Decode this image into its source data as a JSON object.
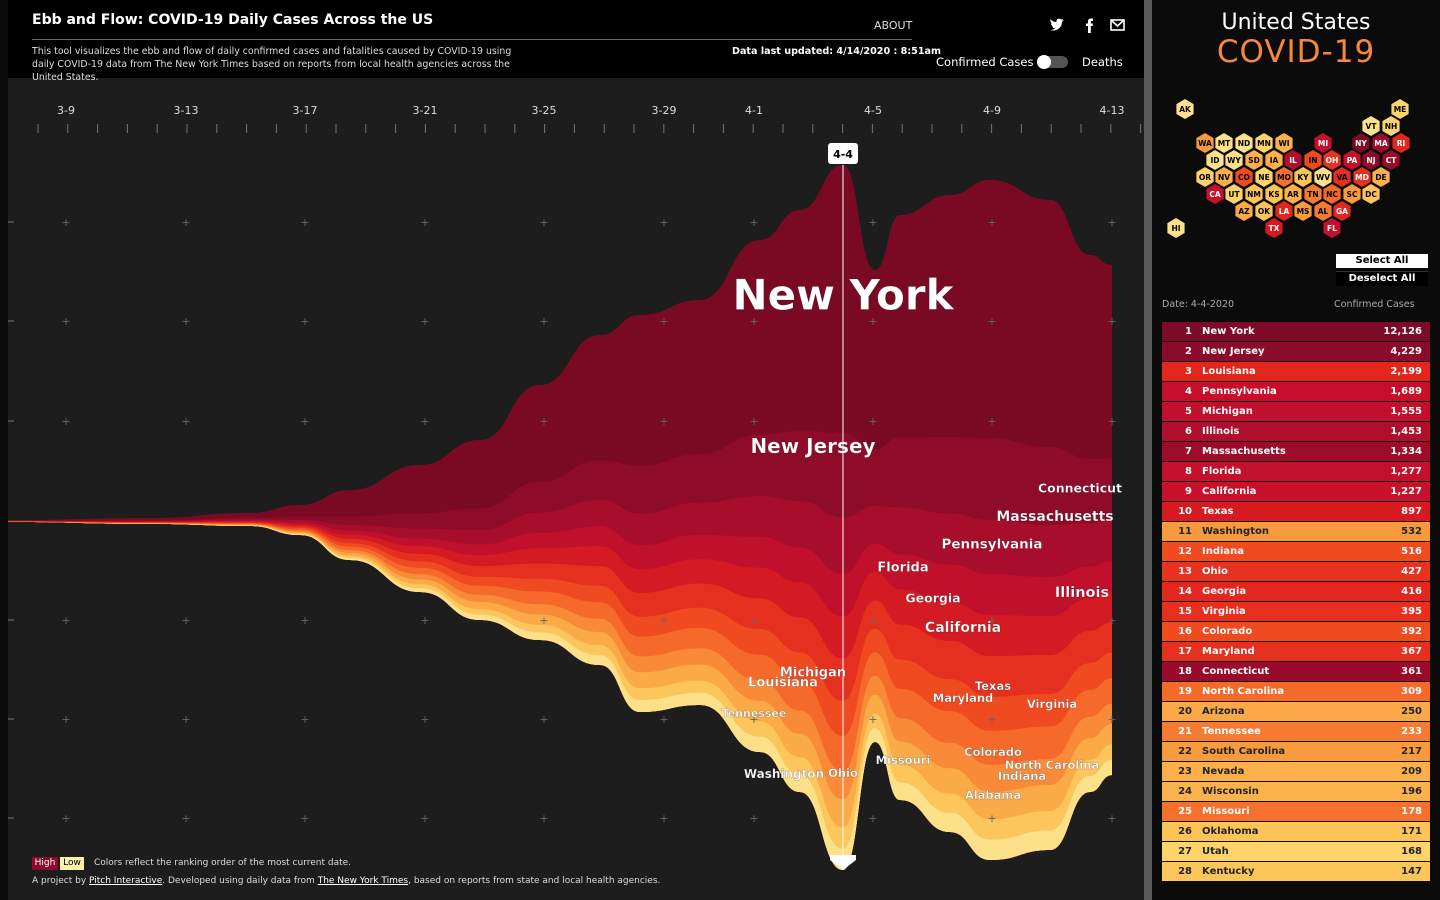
{
  "header": {
    "title": "Ebb and Flow: COVID-19 Daily Cases Across the US",
    "about": "ABOUT",
    "description": "This tool visualizes the ebb and flow of daily confirmed cases and fatalities caused by COVID-19 using daily COVID-19 data from The New York Times based on reports from local health agencies across the United States.",
    "updated": "Data last updated: 4/14/2020 : 8:51am",
    "toggle": {
      "left": "Confirmed Cases",
      "right": "Deaths"
    }
  },
  "chart": {
    "dates": [
      "3-9",
      "3-13",
      "3-17",
      "3-21",
      "3-25",
      "3-29",
      "4-1",
      "4-5",
      "4-9",
      "4-13"
    ],
    "marker": "4-4",
    "labels": [
      "New York",
      "New Jersey",
      "Connecticut",
      "Massachusetts",
      "Pennsylvania",
      "Florida",
      "Illinois",
      "Georgia",
      "California",
      "Michigan",
      "Louisiana",
      "Tennessee",
      "Texas",
      "Maryland",
      "Virginia",
      "Colorado",
      "North Carolina",
      "Indiana",
      "Missouri",
      "Washington",
      "Ohio",
      "Alabama"
    ]
  },
  "legend": {
    "high": "High",
    "low": "Low",
    "note": "Colors reflect the ranking order of the most current date."
  },
  "footer": {
    "parts": [
      "A project by ",
      "Pitch Interactive",
      ". Developed using daily data from ",
      "The New York Times",
      ", based on reports from state and local health agencies."
    ]
  },
  "sidebar": {
    "title": "United States",
    "subtitle": "COVID-19",
    "hexes": [
      {
        "label": "AK",
        "color": "#ffe08a"
      },
      {
        "label": "ME",
        "color": "#fdd36a"
      },
      {
        "label": "VT",
        "color": "#fde08a"
      },
      {
        "label": "NH",
        "color": "#fdd36a"
      },
      {
        "label": "WA",
        "color": "#f79a3e"
      },
      {
        "label": "MT",
        "color": "#fde08a"
      },
      {
        "label": "ND",
        "color": "#fde08a"
      },
      {
        "label": "MN",
        "color": "#fdd36a"
      },
      {
        "label": "WI",
        "color": "#fbb24c"
      },
      {
        "label": "MI",
        "color": "#c1102d"
      },
      {
        "label": "NY",
        "color": "#7d0a27"
      },
      {
        "label": "MA",
        "color": "#9e0c2c"
      },
      {
        "label": "RI",
        "color": "#e3271f"
      },
      {
        "label": "ID",
        "color": "#fde08a"
      },
      {
        "label": "WY",
        "color": "#fde08a"
      },
      {
        "label": "SD",
        "color": "#fbb04b"
      },
      {
        "label": "IA",
        "color": "#fbb04b"
      },
      {
        "label": "IL",
        "color": "#b00e2d"
      },
      {
        "label": "IN",
        "color": "#f04a1f"
      },
      {
        "label": "OH",
        "color": "#e73220"
      },
      {
        "label": "PA",
        "color": "#c70f2c"
      },
      {
        "label": "NJ",
        "color": "#8c0b2a"
      },
      {
        "label": "CT",
        "color": "#9a0b2b"
      },
      {
        "label": "OR",
        "color": "#fdd36a"
      },
      {
        "label": "NV",
        "color": "#fbb04b"
      },
      {
        "label": "CO",
        "color": "#ef4a20"
      },
      {
        "label": "NE",
        "color": "#fdd36a"
      },
      {
        "label": "MO",
        "color": "#f56f2d"
      },
      {
        "label": "KY",
        "color": "#fcc55a"
      },
      {
        "label": "WV",
        "color": "#fde08a"
      },
      {
        "label": "VA",
        "color": "#e82f1f"
      },
      {
        "label": "MD",
        "color": "#e5301f"
      },
      {
        "label": "DE",
        "color": "#fbb04b"
      },
      {
        "label": "CA",
        "color": "#c8102d"
      },
      {
        "label": "UT",
        "color": "#fdd36a"
      },
      {
        "label": "NM",
        "color": "#fcc457"
      },
      {
        "label": "KS",
        "color": "#fcc457"
      },
      {
        "label": "AR",
        "color": "#fbb04b"
      },
      {
        "label": "TN",
        "color": "#f57a32"
      },
      {
        "label": "NC",
        "color": "#f46a2b"
      },
      {
        "label": "SC",
        "color": "#f89a3e"
      },
      {
        "label": "DC",
        "color": "#fcc457"
      },
      {
        "label": "AZ",
        "color": "#fba948"
      },
      {
        "label": "OK",
        "color": "#fcc457"
      },
      {
        "label": "LA",
        "color": "#e2261c"
      },
      {
        "label": "MS",
        "color": "#f89a3e"
      },
      {
        "label": "AL",
        "color": "#f57a32"
      },
      {
        "label": "GA",
        "color": "#e3271f"
      },
      {
        "label": "HI",
        "color": "#ffe08a"
      },
      {
        "label": "TX",
        "color": "#d71920"
      },
      {
        "label": "FL",
        "color": "#c3102c"
      }
    ],
    "select_all": "Select All",
    "deselect_all": "Deselect All",
    "date": "Date: 4-4-2020",
    "metric": "Confirmed Cases",
    "rows": [
      {
        "rank": 1,
        "name": "New York",
        "cases": "12,126",
        "color": "#7d0a27"
      },
      {
        "rank": 2,
        "name": "New Jersey",
        "cases": "4,229",
        "color": "#8c0b2a"
      },
      {
        "rank": 3,
        "name": "Louisiana",
        "cases": "2,199",
        "color": "#e2261c"
      },
      {
        "rank": 4,
        "name": "Pennsylvania",
        "cases": "1,689",
        "color": "#c70f2c"
      },
      {
        "rank": 5,
        "name": "Michigan",
        "cases": "1,555",
        "color": "#c1102d"
      },
      {
        "rank": 6,
        "name": "Illinois",
        "cases": "1,453",
        "color": "#b00e2d"
      },
      {
        "rank": 7,
        "name": "Massachusetts",
        "cases": "1,334",
        "color": "#9e0c2c"
      },
      {
        "rank": 8,
        "name": "Florida",
        "cases": "1,277",
        "color": "#c3102c"
      },
      {
        "rank": 9,
        "name": "California",
        "cases": "1,227",
        "color": "#c8102d"
      },
      {
        "rank": 10,
        "name": "Texas",
        "cases": "897",
        "color": "#d71920"
      },
      {
        "rank": 11,
        "name": "Washington",
        "cases": "532",
        "color": "#f79a3e"
      },
      {
        "rank": 12,
        "name": "Indiana",
        "cases": "516",
        "color": "#f04a1f"
      },
      {
        "rank": 13,
        "name": "Ohio",
        "cases": "427",
        "color": "#e73220"
      },
      {
        "rank": 14,
        "name": "Georgia",
        "cases": "416",
        "color": "#e3271f"
      },
      {
        "rank": 15,
        "name": "Virginia",
        "cases": "395",
        "color": "#e82f1f"
      },
      {
        "rank": 16,
        "name": "Colorado",
        "cases": "392",
        "color": "#ef4a20"
      },
      {
        "rank": 17,
        "name": "Maryland",
        "cases": "367",
        "color": "#e5301f"
      },
      {
        "rank": 18,
        "name": "Connecticut",
        "cases": "361",
        "color": "#9a0b2b"
      },
      {
        "rank": 19,
        "name": "North Carolina",
        "cases": "309",
        "color": "#f46a2b"
      },
      {
        "rank": 20,
        "name": "Arizona",
        "cases": "250",
        "color": "#fba948"
      },
      {
        "rank": 21,
        "name": "Tennessee",
        "cases": "233",
        "color": "#f57a32"
      },
      {
        "rank": 22,
        "name": "South Carolina",
        "cases": "217",
        "color": "#f89a3e"
      },
      {
        "rank": 23,
        "name": "Nevada",
        "cases": "209",
        "color": "#fbb04b"
      },
      {
        "rank": 24,
        "name": "Wisconsin",
        "cases": "196",
        "color": "#fbb24c"
      },
      {
        "rank": 25,
        "name": "Missouri",
        "cases": "178",
        "color": "#f56f2d"
      },
      {
        "rank": 26,
        "name": "Oklahoma",
        "cases": "171",
        "color": "#fcc457"
      },
      {
        "rank": 27,
        "name": "Utah",
        "cases": "168",
        "color": "#fdd36a"
      },
      {
        "rank": 28,
        "name": "Kentucky",
        "cases": "147",
        "color": "#fcc55a"
      }
    ]
  }
}
